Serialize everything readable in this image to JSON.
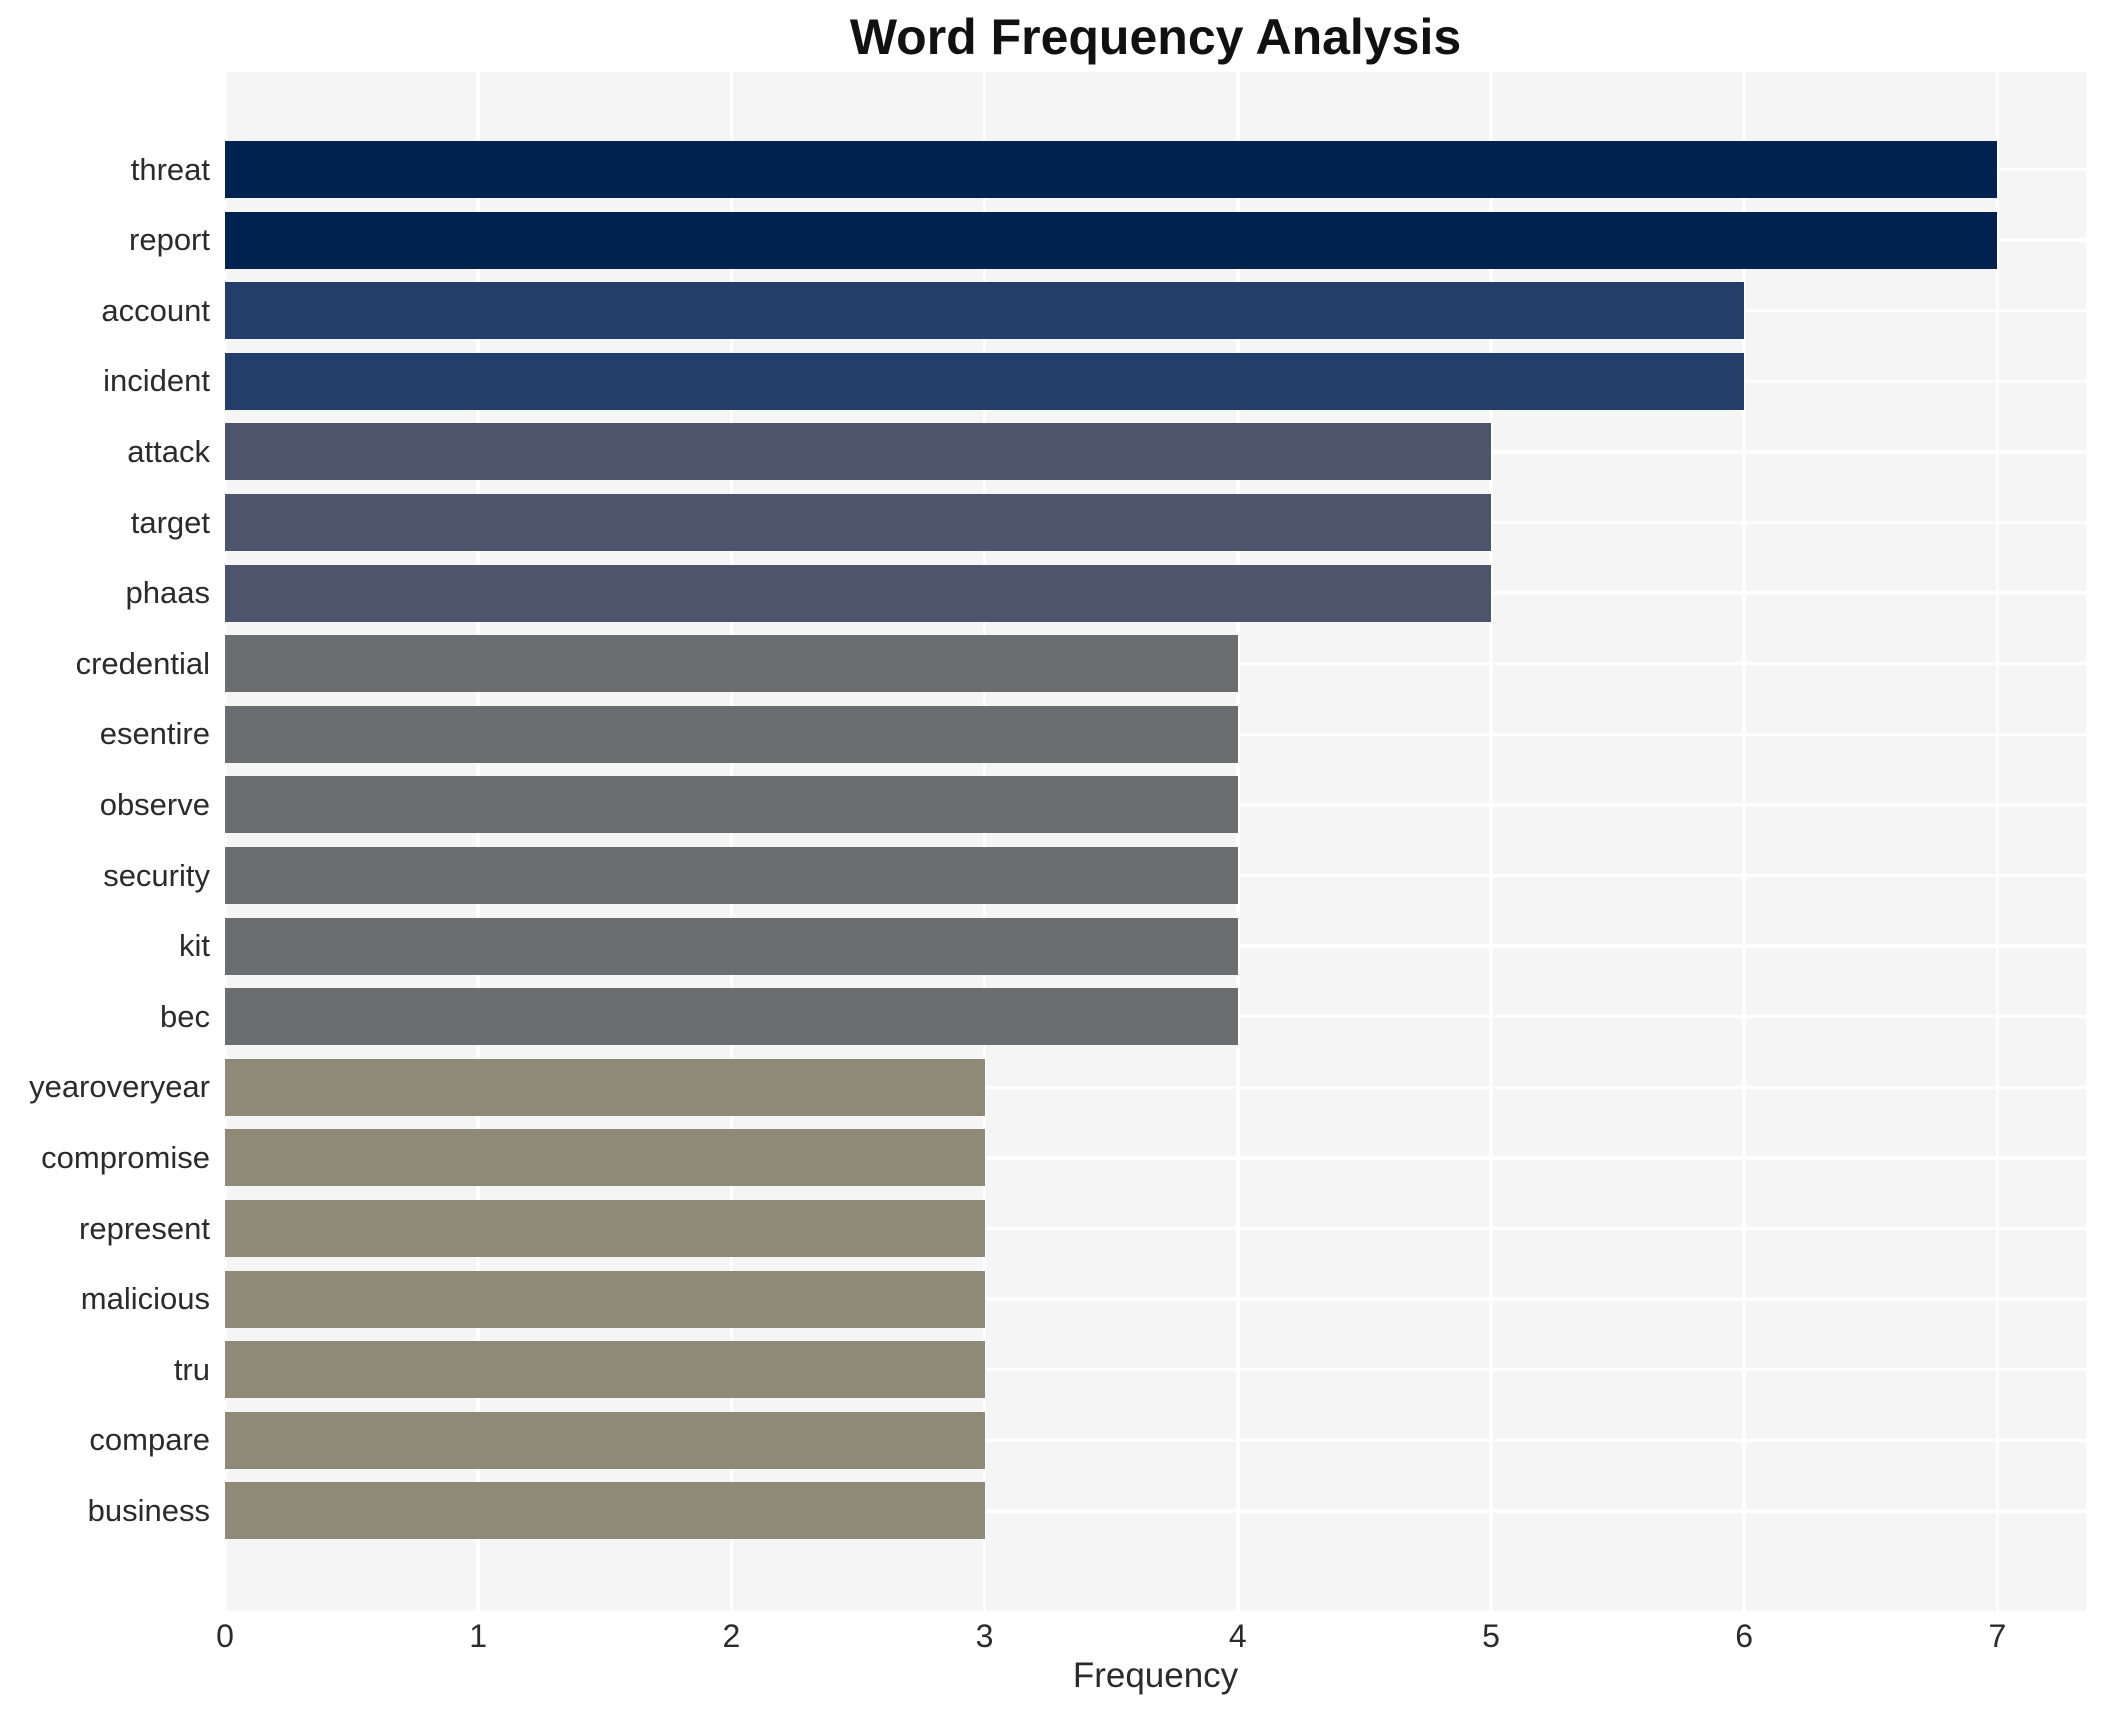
{
  "chart_data": {
    "type": "bar",
    "orientation": "horizontal",
    "title": "Word Frequency Analysis",
    "xlabel": "Frequency",
    "ylabel": "",
    "categories": [
      "threat",
      "report",
      "account",
      "incident",
      "attack",
      "target",
      "phaas",
      "credential",
      "esentire",
      "observe",
      "security",
      "kit",
      "bec",
      "yearoveryear",
      "compromise",
      "represent",
      "malicious",
      "tru",
      "compare",
      "business"
    ],
    "values": [
      7,
      7,
      6,
      6,
      5,
      5,
      5,
      4,
      4,
      4,
      4,
      4,
      4,
      3,
      3,
      3,
      3,
      3,
      3,
      3
    ],
    "xticks": [
      0,
      1,
      2,
      3,
      4,
      5,
      6,
      7
    ],
    "xlim": [
      0,
      7.35
    ],
    "grid": true,
    "legend": false,
    "gridline_color": "#ffffff",
    "plot_background": "#f5f5f6",
    "figure_background": "#ffffff",
    "text_color": "#2b2b2b",
    "color_by_value": {
      "7": "#00224e",
      "6": "#243e6c",
      "5": "#4d556d",
      "4": "#6c6d70",
      "3": "#8f8978"
    }
  }
}
